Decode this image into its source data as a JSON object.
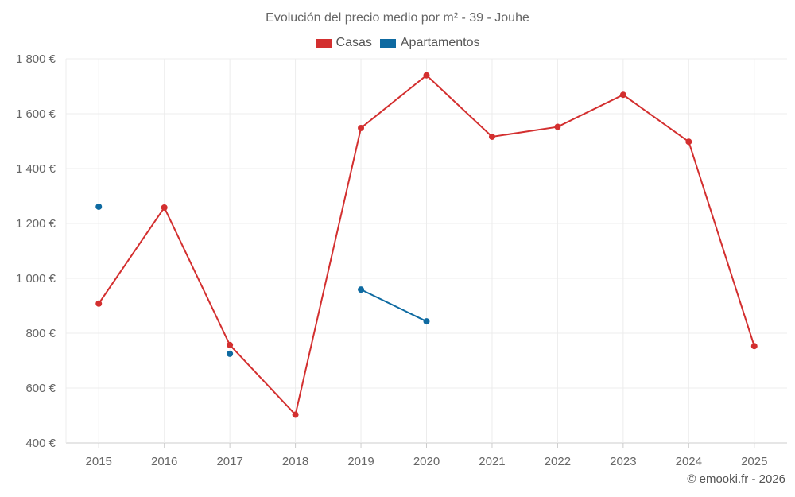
{
  "chart_data": {
    "type": "line",
    "title": "Evolución del precio medio por m² - 39 - Jouhe",
    "xlabel": "",
    "ylabel": "",
    "categories": [
      "2015",
      "2016",
      "2017",
      "2018",
      "2019",
      "2020",
      "2021",
      "2022",
      "2023",
      "2024",
      "2025"
    ],
    "ylim": [
      400,
      1800
    ],
    "yticks": [
      400,
      600,
      800,
      1000,
      1200,
      1400,
      1600,
      1800
    ],
    "ytick_labels": [
      "400 €",
      "600 €",
      "800 €",
      "1 000 €",
      "1 200 €",
      "1 400 €",
      "1 600 €",
      "1 800 €"
    ],
    "grid": true,
    "legend_position": "top-center",
    "series": [
      {
        "name": "Casas",
        "color": "#d32f2f",
        "values": [
          908,
          1258,
          757,
          503,
          1548,
          1740,
          1516,
          1552,
          1669,
          1498,
          753
        ]
      },
      {
        "name": "Apartamentos",
        "color": "#0e6aa1",
        "values": [
          1261,
          null,
          725,
          null,
          959,
          843,
          null,
          null,
          null,
          null,
          null
        ]
      }
    ]
  },
  "credit": "© emooki.fr - 2026"
}
